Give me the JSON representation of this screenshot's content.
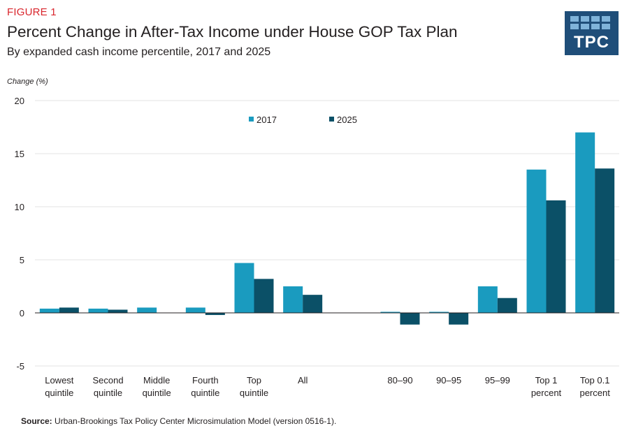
{
  "figure_label": "FIGURE 1",
  "logo_text": "TPC",
  "source_label": "Source:",
  "source_text": " Urban-Brookings Tax Policy Center Microsimulation Model (version 0516-1).",
  "colors": {
    "series_2017": "#1a9bbf",
    "series_2025": "#0b5067",
    "logo_bg": "#1f4e79",
    "figure_label": "#d9262d"
  },
  "chart_data": {
    "type": "bar",
    "title": "Percent Change in After-Tax Income under House GOP Tax Plan",
    "subtitle": "By expanded cash income percentile, 2017 and 2025",
    "ylabel": "Change (%)",
    "ylim": [
      -5,
      20
    ],
    "yticks": [
      -5,
      0,
      5,
      10,
      15,
      20
    ],
    "grid": true,
    "legend_position": "top-center",
    "categories": [
      [
        "Lowest",
        "quintile"
      ],
      [
        "Second",
        "quintile"
      ],
      [
        "Middle",
        "quintile"
      ],
      [
        "Fourth",
        "quintile"
      ],
      [
        "Top",
        "quintile"
      ],
      [
        "All"
      ],
      [
        ""
      ],
      [
        "80–90"
      ],
      [
        "90–95"
      ],
      [
        "95–99"
      ],
      [
        "Top 1",
        "percent"
      ],
      [
        "Top 0.1",
        "percent"
      ]
    ],
    "series": [
      {
        "name": "2017",
        "values": [
          0.4,
          0.4,
          0.5,
          0.5,
          4.7,
          2.5,
          null,
          0.1,
          0.1,
          2.5,
          13.5,
          17.0
        ]
      },
      {
        "name": "2025",
        "values": [
          0.5,
          0.3,
          0.0,
          -0.2,
          3.2,
          1.7,
          null,
          -1.1,
          -1.1,
          1.4,
          10.6,
          13.6
        ]
      }
    ]
  }
}
